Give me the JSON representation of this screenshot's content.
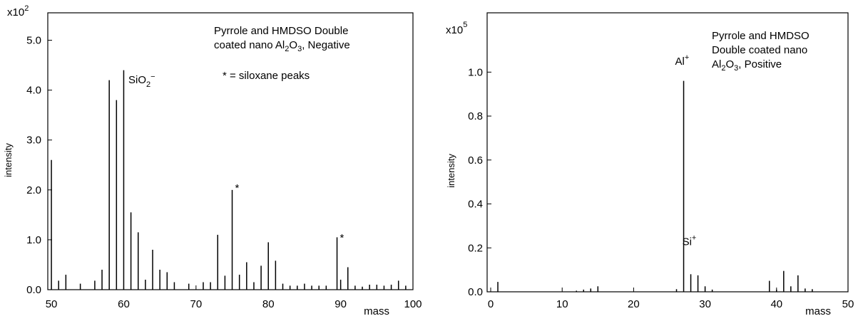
{
  "chart_data": [
    {
      "type": "bar",
      "title": "",
      "xlabel": "mass",
      "ylabel": "intensity",
      "multiplier_base": "x10",
      "multiplier_exp": "2",
      "xlim": [
        49.5,
        100
      ],
      "ylim": [
        0,
        5.55
      ],
      "xticks": [
        "50",
        "60",
        "70",
        "80",
        "90",
        "100"
      ],
      "yticks": [
        "0.0",
        "1.0",
        "2.0",
        "3.0",
        "4.0",
        "5.0"
      ],
      "annotation_lines": [
        "Pyrrole and HMDSO Double",
        "coated nano "
      ],
      "annotation_formula": {
        "a": "Al",
        "s1": "2",
        "b": "O",
        "s2": "3",
        "c": ", Negative"
      },
      "note": "* = siloxane peaks",
      "peak_label": {
        "base": "SiO",
        "sub": "2",
        "sup": "−",
        "x": 60,
        "y": 4.3
      },
      "star_marks": [
        {
          "text": "*",
          "x": 75,
          "y": 2.0
        },
        {
          "text": "*",
          "x": 89.5,
          "y": 1.0
        }
      ],
      "series": [
        {
          "x": [
            50,
            51,
            52,
            54,
            56,
            57,
            58,
            59,
            60,
            61,
            62,
            63,
            64,
            65,
            66,
            67,
            69,
            71,
            72,
            73,
            74,
            75,
            76,
            77,
            78,
            79,
            80,
            81,
            82,
            83,
            84,
            85,
            86,
            87,
            88,
            89.5,
            90,
            91,
            92,
            93,
            94,
            95,
            96,
            97,
            98,
            99
          ],
          "values": [
            2.6,
            0.18,
            0.3,
            0.12,
            0.18,
            0.4,
            4.2,
            3.8,
            4.4,
            1.55,
            1.15,
            0.2,
            0.8,
            0.4,
            0.35,
            0.15,
            0.12,
            0.15,
            0.15,
            1.1,
            0.28,
            2.0,
            0.3,
            0.55,
            0.15,
            0.48,
            0.95,
            0.58,
            0.12,
            0.08,
            0.08,
            0.12,
            0.08,
            0.08,
            0.08,
            1.05,
            0.2,
            0.45,
            0.08,
            0.06,
            0.1,
            0.1,
            0.08,
            0.1,
            0.18,
            0.08
          ]
        }
      ]
    },
    {
      "type": "bar",
      "title": "",
      "xlabel": "mass",
      "ylabel": "intensity",
      "multiplier_base": "x10",
      "multiplier_exp": "5",
      "xlim": [
        -0.5,
        50
      ],
      "ylim": [
        0,
        1.27
      ],
      "xticks": [
        "0",
        "10",
        "20",
        "30",
        "40",
        "50"
      ],
      "yticks": [
        "0.0",
        "0.2",
        "0.4",
        "0.6",
        "0.8",
        "1.0"
      ],
      "annotation_lines": [
        "Pyrrole and HMDSO",
        "Double coated nano"
      ],
      "annotation_formula": {
        "a": "Al",
        "s1": "2",
        "b": "O",
        "s2": "3",
        "c": ", Positive"
      },
      "peak_labels": [
        {
          "base": "Al",
          "sup": "+",
          "x": 27,
          "y": 1.02
        },
        {
          "base": "Si",
          "sup": "+",
          "x": 28,
          "y": 0.2
        }
      ],
      "series": [
        {
          "x": [
            1,
            12,
            13,
            14,
            15,
            26,
            27,
            28,
            29,
            30,
            31,
            39,
            40,
            41,
            42,
            43,
            44,
            45
          ],
          "values": [
            0.045,
            0.005,
            0.01,
            0.015,
            0.025,
            0.012,
            0.96,
            0.08,
            0.075,
            0.025,
            0.01,
            0.05,
            0.01,
            0.095,
            0.025,
            0.075,
            0.015,
            0.012
          ]
        }
      ]
    }
  ]
}
